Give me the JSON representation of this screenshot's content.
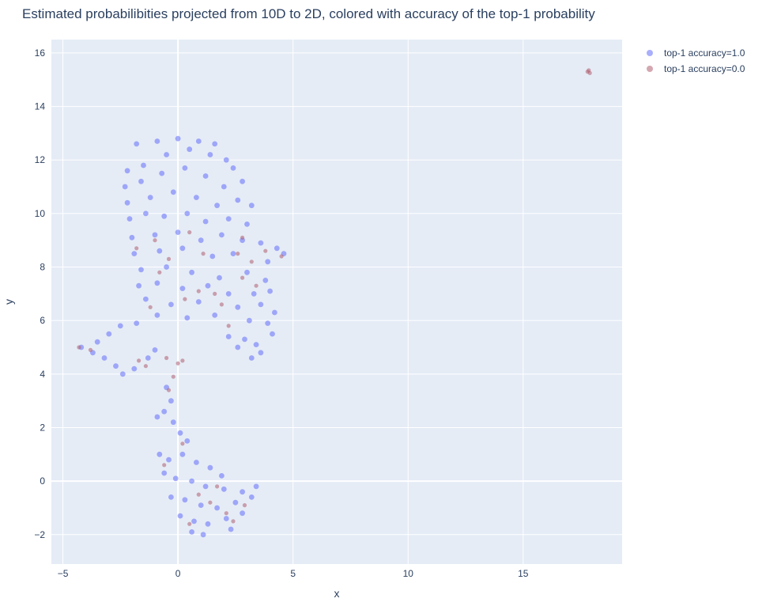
{
  "title": "Estimated probabilibities projected from 10D to 2D, colored with accuracy of the top-1 probability",
  "colors": {
    "plot_bg": "#e5ecf6",
    "grid": "#ffffff",
    "series_1": "#636efa",
    "series_2": "#b05f70"
  },
  "chart_data": {
    "type": "scatter",
    "xlabel": "x",
    "ylabel": "y",
    "xlim": [
      -5.5,
      19.3
    ],
    "ylim": [
      -3.1,
      16.5
    ],
    "x_ticks": [
      -5,
      0,
      5,
      10,
      15
    ],
    "y_ticks": [
      -2,
      0,
      2,
      4,
      6,
      8,
      10,
      12,
      14,
      16
    ],
    "x_tick_labels": [
      "−5",
      "0",
      "5",
      "10",
      "15"
    ],
    "y_tick_labels": [
      "−2",
      "0",
      "2",
      "4",
      "6",
      "8",
      "10",
      "12",
      "14",
      "16"
    ],
    "grid": true,
    "legend_position": "top-right outside",
    "series": [
      {
        "name": "top-1 accuracy=1.0",
        "color": "#636efa",
        "points": [
          [
            -1.8,
            12.6
          ],
          [
            -0.9,
            12.7
          ],
          [
            0.0,
            12.8
          ],
          [
            0.9,
            12.7
          ],
          [
            1.6,
            12.6
          ],
          [
            2.1,
            12.0
          ],
          [
            -2.2,
            11.6
          ],
          [
            -1.5,
            11.8
          ],
          [
            -0.5,
            12.2
          ],
          [
            0.5,
            12.4
          ],
          [
            1.4,
            12.2
          ],
          [
            2.4,
            11.7
          ],
          [
            -2.3,
            11.0
          ],
          [
            -1.6,
            11.2
          ],
          [
            -0.7,
            11.5
          ],
          [
            0.3,
            11.7
          ],
          [
            1.2,
            11.4
          ],
          [
            2.0,
            11.0
          ],
          [
            2.8,
            11.2
          ],
          [
            -2.2,
            10.4
          ],
          [
            -1.2,
            10.6
          ],
          [
            -0.2,
            10.8
          ],
          [
            0.8,
            10.6
          ],
          [
            1.7,
            10.3
          ],
          [
            2.6,
            10.5
          ],
          [
            3.2,
            10.3
          ],
          [
            -2.1,
            9.8
          ],
          [
            -1.4,
            10.0
          ],
          [
            -0.6,
            9.9
          ],
          [
            0.4,
            10.0
          ],
          [
            1.2,
            9.7
          ],
          [
            2.2,
            9.8
          ],
          [
            3.0,
            9.6
          ],
          [
            -2.0,
            9.1
          ],
          [
            -1.0,
            9.2
          ],
          [
            0.0,
            9.3
          ],
          [
            1.0,
            9.0
          ],
          [
            1.9,
            9.2
          ],
          [
            2.8,
            9.0
          ],
          [
            3.6,
            8.9
          ],
          [
            4.3,
            8.7
          ],
          [
            -1.9,
            8.5
          ],
          [
            -0.8,
            8.6
          ],
          [
            0.2,
            8.7
          ],
          [
            1.5,
            8.4
          ],
          [
            2.4,
            8.5
          ],
          [
            3.9,
            8.2
          ],
          [
            4.6,
            8.5
          ],
          [
            -1.6,
            7.9
          ],
          [
            -0.5,
            8.0
          ],
          [
            0.6,
            7.8
          ],
          [
            1.8,
            7.6
          ],
          [
            3.0,
            7.8
          ],
          [
            3.8,
            7.5
          ],
          [
            -1.7,
            7.3
          ],
          [
            -0.9,
            7.4
          ],
          [
            0.2,
            7.2
          ],
          [
            1.3,
            7.3
          ],
          [
            2.2,
            7.0
          ],
          [
            3.3,
            7.0
          ],
          [
            4.0,
            7.1
          ],
          [
            -1.4,
            6.8
          ],
          [
            -0.3,
            6.6
          ],
          [
            0.9,
            6.7
          ],
          [
            2.6,
            6.5
          ],
          [
            3.6,
            6.6
          ],
          [
            4.2,
            6.3
          ],
          [
            -0.9,
            6.2
          ],
          [
            0.4,
            6.1
          ],
          [
            1.6,
            6.2
          ],
          [
            3.1,
            6.0
          ],
          [
            3.9,
            5.9
          ],
          [
            4.1,
            5.5
          ],
          [
            -1.8,
            5.9
          ],
          [
            -2.5,
            5.8
          ],
          [
            -3.0,
            5.5
          ],
          [
            -3.5,
            5.2
          ],
          [
            -4.2,
            5.0
          ],
          [
            -3.7,
            4.8
          ],
          [
            -3.2,
            4.6
          ],
          [
            -2.7,
            4.3
          ],
          [
            -2.4,
            4.0
          ],
          [
            -1.9,
            4.2
          ],
          [
            -1.3,
            4.6
          ],
          [
            -1.0,
            4.9
          ],
          [
            2.9,
            5.3
          ],
          [
            3.4,
            5.1
          ],
          [
            3.6,
            4.8
          ],
          [
            3.2,
            4.6
          ],
          [
            2.6,
            5.0
          ],
          [
            2.2,
            5.4
          ],
          [
            -0.5,
            3.5
          ],
          [
            -0.3,
            3.0
          ],
          [
            -0.9,
            2.4
          ],
          [
            -0.6,
            2.6
          ],
          [
            -0.2,
            2.2
          ],
          [
            0.1,
            1.8
          ],
          [
            0.4,
            1.5
          ],
          [
            -0.8,
            1.0
          ],
          [
            -0.4,
            0.8
          ],
          [
            0.2,
            1.0
          ],
          [
            0.8,
            0.7
          ],
          [
            1.4,
            0.5
          ],
          [
            1.9,
            0.2
          ],
          [
            -0.6,
            0.3
          ],
          [
            -0.1,
            0.1
          ],
          [
            0.6,
            0.0
          ],
          [
            1.2,
            -0.2
          ],
          [
            2.0,
            -0.3
          ],
          [
            2.8,
            -0.4
          ],
          [
            3.4,
            -0.2
          ],
          [
            -0.3,
            -0.6
          ],
          [
            0.3,
            -0.7
          ],
          [
            1.0,
            -0.9
          ],
          [
            1.7,
            -1.0
          ],
          [
            2.5,
            -0.8
          ],
          [
            3.2,
            -0.6
          ],
          [
            0.1,
            -1.3
          ],
          [
            0.7,
            -1.5
          ],
          [
            1.3,
            -1.6
          ],
          [
            2.1,
            -1.4
          ],
          [
            2.8,
            -1.2
          ],
          [
            0.6,
            -1.9
          ],
          [
            1.1,
            -2.0
          ],
          [
            2.3,
            -1.8
          ]
        ]
      },
      {
        "name": "top-1 accuracy=0.0",
        "color": "#b05f70",
        "points": [
          [
            17.8,
            15.3
          ],
          [
            17.9,
            15.25
          ],
          [
            17.85,
            15.35
          ],
          [
            -1.8,
            8.7
          ],
          [
            -1.0,
            9.0
          ],
          [
            -0.4,
            8.3
          ],
          [
            0.5,
            9.3
          ],
          [
            1.1,
            8.5
          ],
          [
            2.6,
            8.5
          ],
          [
            3.2,
            8.2
          ],
          [
            3.8,
            8.6
          ],
          [
            4.5,
            8.4
          ],
          [
            2.8,
            9.1
          ],
          [
            -0.8,
            7.8
          ],
          [
            0.9,
            7.1
          ],
          [
            1.6,
            7.0
          ],
          [
            2.8,
            7.6
          ],
          [
            3.4,
            7.3
          ],
          [
            -1.2,
            6.5
          ],
          [
            0.3,
            6.8
          ],
          [
            1.9,
            6.6
          ],
          [
            2.2,
            5.8
          ],
          [
            -4.3,
            5.0
          ],
          [
            -3.8,
            4.9
          ],
          [
            -1.7,
            4.5
          ],
          [
            -1.4,
            4.3
          ],
          [
            -0.5,
            4.6
          ],
          [
            0.0,
            4.4
          ],
          [
            0.2,
            4.5
          ],
          [
            -0.2,
            3.9
          ],
          [
            -0.4,
            3.4
          ],
          [
            0.2,
            1.4
          ],
          [
            -0.6,
            0.6
          ],
          [
            0.9,
            -0.5
          ],
          [
            1.4,
            -0.8
          ],
          [
            2.1,
            -1.2
          ],
          [
            2.4,
            -1.5
          ],
          [
            0.5,
            -1.6
          ],
          [
            1.7,
            -0.2
          ],
          [
            2.9,
            -0.9
          ]
        ]
      }
    ]
  }
}
